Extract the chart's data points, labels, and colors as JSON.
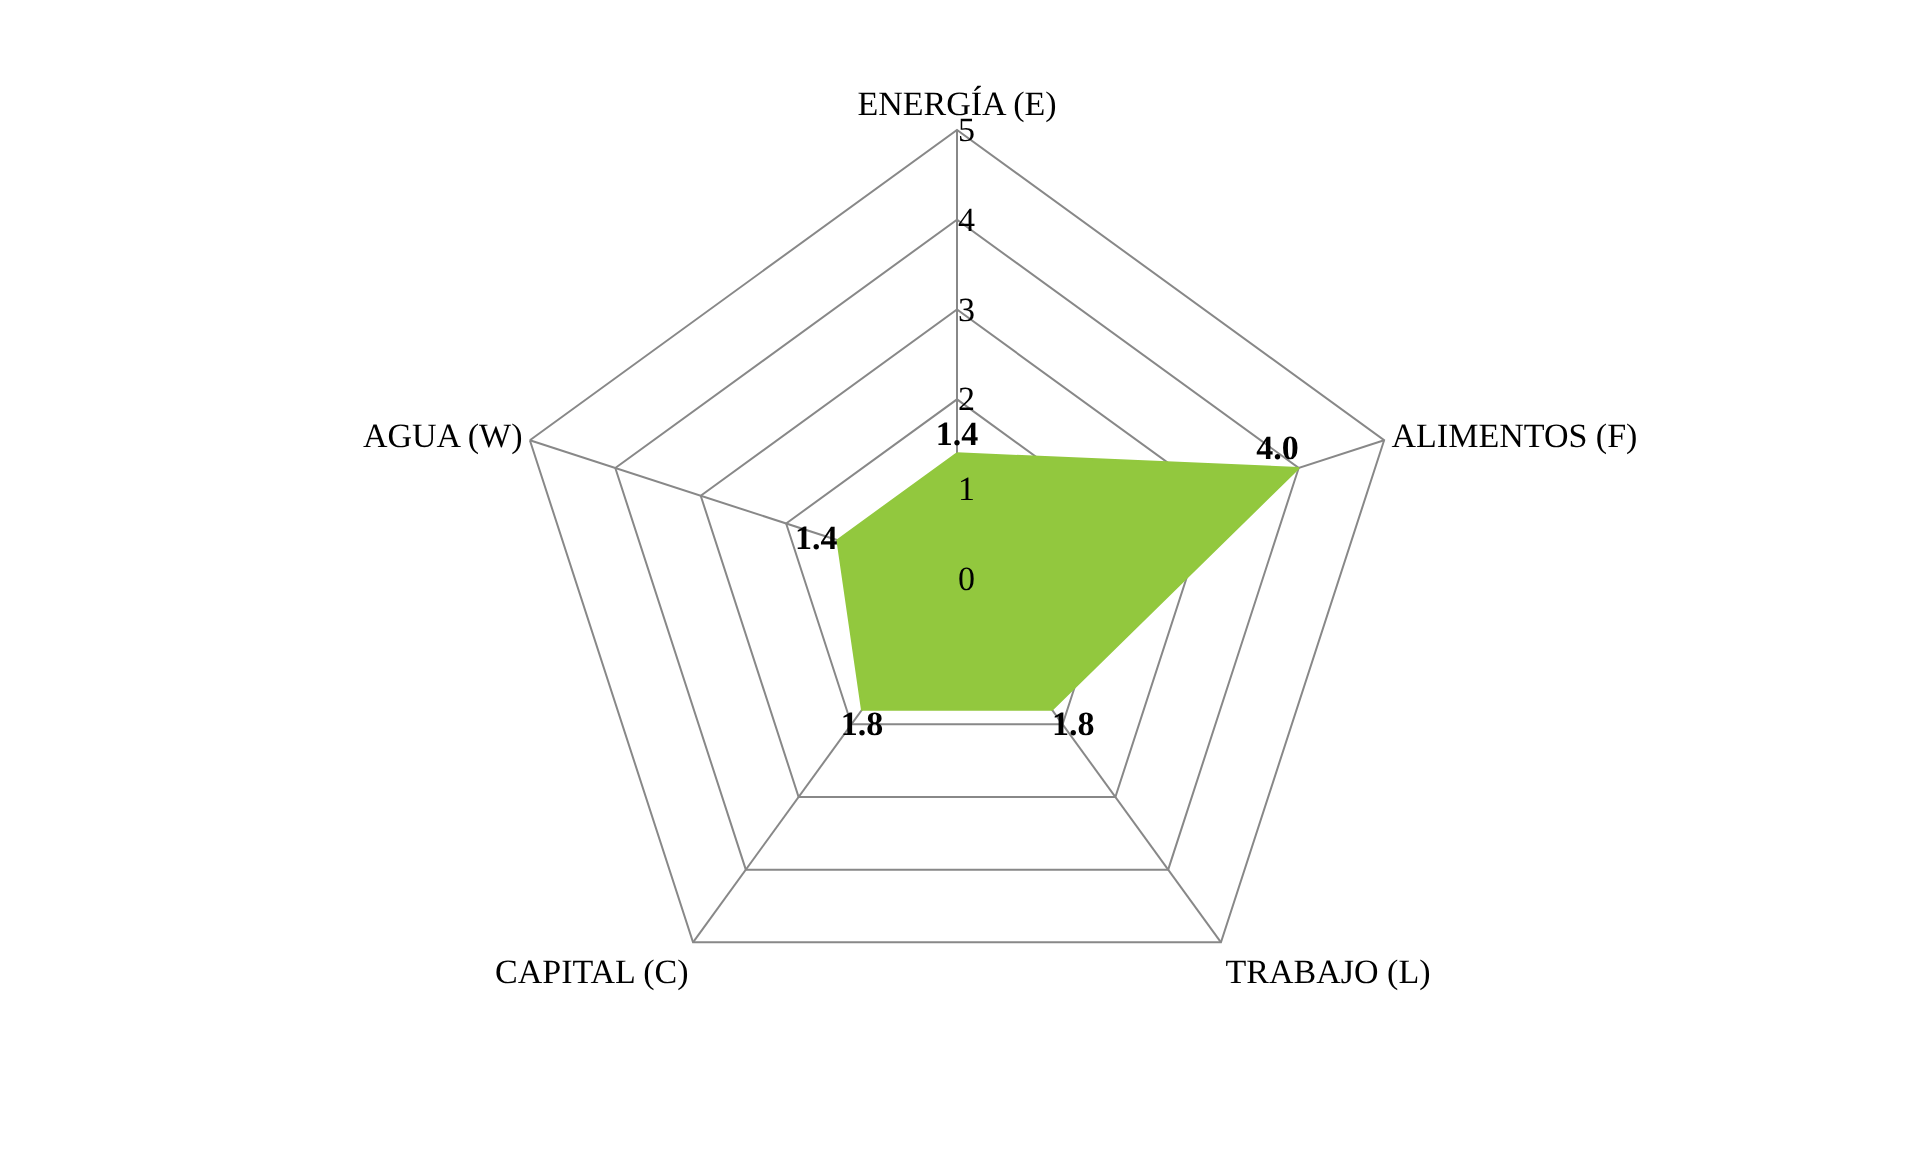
{
  "chart_data": {
    "type": "radar",
    "categories": [
      "ENERGÍA (E)",
      "ALIMENTOS (F)",
      "TRABAJO (L)",
      "CAPITAL (C)",
      "AGUA (W)"
    ],
    "series": [
      {
        "color": "#92c83e",
        "values": [
          1.4,
          4.0,
          1.8,
          1.8,
          1.4
        ],
        "value_labels": [
          "1.4",
          "4.0",
          "1.8",
          "1.8",
          "1.4"
        ]
      }
    ],
    "ylim": [
      0,
      5
    ],
    "yticks": [
      0,
      1,
      2,
      3,
      4,
      5
    ],
    "grid": true,
    "marker": "none"
  }
}
